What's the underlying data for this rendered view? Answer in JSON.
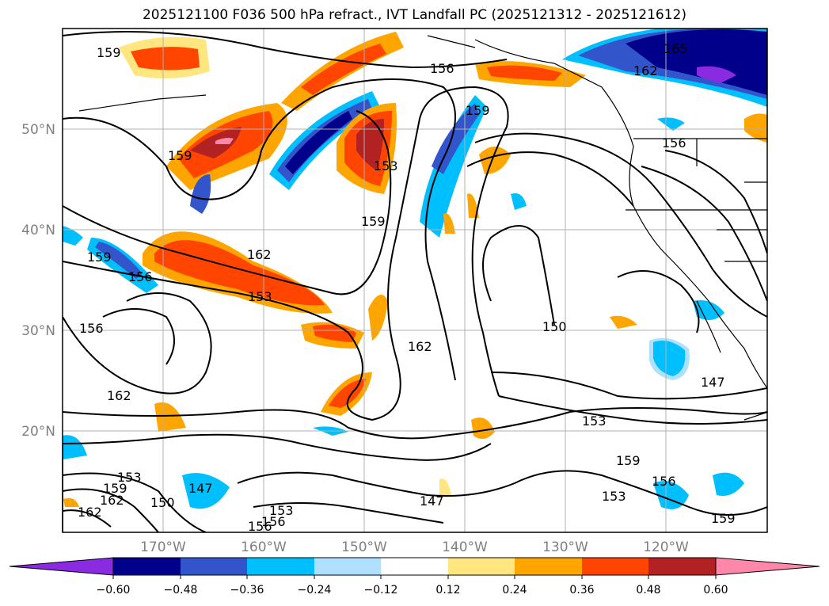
{
  "title": "2025121100 F036 500 hPa refract., IVT Landfall PC (2025121312 - 2025121612)",
  "map": {
    "lon_labels": [
      "170°W",
      "160°W",
      "150°W",
      "140°W",
      "130°W",
      "120°W"
    ],
    "lat_labels": [
      "50°N",
      "40°N",
      "30°N",
      "20°N"
    ],
    "colors": {
      "ocean": "#ffffff",
      "grid": "#b0b0b0",
      "coastline": "#000000",
      "contour": "#000000"
    }
  },
  "contour_labels": [
    {
      "text": "159"
    },
    {
      "text": "156"
    },
    {
      "text": "165"
    },
    {
      "text": "162"
    },
    {
      "text": "159"
    },
    {
      "text": "159"
    },
    {
      "text": "153"
    },
    {
      "text": "156"
    },
    {
      "text": "159"
    },
    {
      "text": "162"
    },
    {
      "text": "159"
    },
    {
      "text": "156"
    },
    {
      "text": "153"
    },
    {
      "text": "156"
    },
    {
      "text": "150"
    },
    {
      "text": "162"
    },
    {
      "text": "162"
    },
    {
      "text": "147"
    },
    {
      "text": "153"
    },
    {
      "text": "159"
    },
    {
      "text": "153"
    },
    {
      "text": "156"
    },
    {
      "text": "147"
    },
    {
      "text": "153"
    },
    {
      "text": "162"
    },
    {
      "text": "150"
    },
    {
      "text": "147"
    },
    {
      "text": "153"
    },
    {
      "text": "156"
    },
    {
      "text": "159"
    },
    {
      "text": "159"
    },
    {
      "text": "156"
    },
    {
      "text": "162"
    }
  ],
  "colorbar": {
    "colors": [
      "#8a2be2",
      "#00008b",
      "#3355cc",
      "#00bfff",
      "#b0e0ff",
      "#ffffff",
      "#ffe680",
      "#ffa500",
      "#ff4500",
      "#b22222",
      "#ff88aa"
    ],
    "tick_labels": [
      "−0.60",
      "−0.48",
      "−0.36",
      "−0.24",
      "−0.12",
      "0.12",
      "0.24",
      "0.36",
      "0.48",
      "0.60"
    ]
  }
}
